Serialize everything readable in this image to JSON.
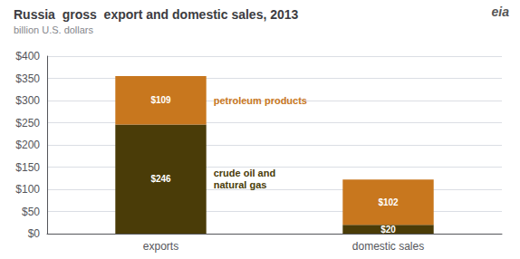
{
  "chart_data": {
    "type": "bar",
    "title": "Russia  gross  export and domestic sales, 2013",
    "subtitle": "billion U.S. dollars",
    "categories": [
      "exports",
      "domestic sales"
    ],
    "series": [
      {
        "name": "crude oil and\nnatural gas",
        "color": "#4a3c08",
        "values": [
          246,
          20
        ],
        "value_labels": [
          "$246",
          "$20"
        ]
      },
      {
        "name": "petroleum products",
        "color": "#c8771e",
        "values": [
          109,
          102
        ],
        "value_labels": [
          "$109",
          "$102"
        ]
      }
    ],
    "stacked": true,
    "data_labels": true,
    "ylim": [
      0,
      400
    ],
    "yticks": [
      {
        "value": 0,
        "label": "$0"
      },
      {
        "value": 50,
        "label": "$50"
      },
      {
        "value": 100,
        "label": "$100"
      },
      {
        "value": 150,
        "label": "$150"
      },
      {
        "value": 200,
        "label": "$200"
      },
      {
        "value": 250,
        "label": "$250"
      },
      {
        "value": 300,
        "label": "$300"
      },
      {
        "value": 350,
        "label": "$350"
      },
      {
        "value": 400,
        "label": "$400"
      }
    ],
    "grid": true,
    "annotations": [
      "eia"
    ]
  }
}
